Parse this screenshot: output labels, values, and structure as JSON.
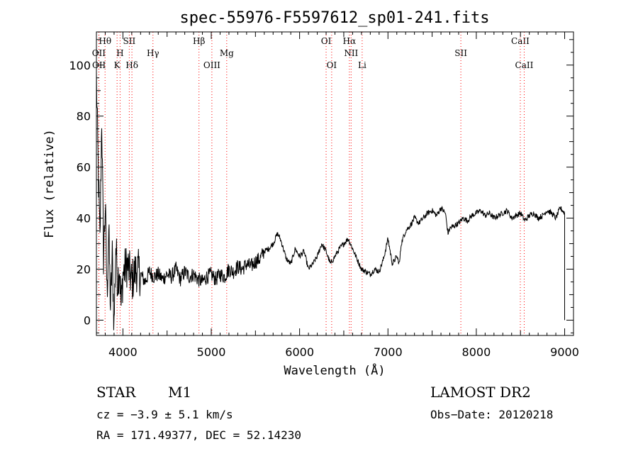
{
  "chart_data": {
    "type": "line",
    "title": "spec-55976-F5597612_sp01-241.fits",
    "xlabel": "Wavelength (Å)",
    "ylabel": "Flux (relative)",
    "xlim": [
      3700,
      9100
    ],
    "ylim": [
      -6,
      113
    ],
    "xticks": [
      4000,
      5000,
      6000,
      7000,
      8000,
      9000
    ],
    "yticks": [
      0,
      20,
      40,
      60,
      80,
      100
    ],
    "grid": false,
    "line_color": "#000000",
    "marker_color": "#ff0000",
    "series": [
      {
        "x": [
          3700,
          3720,
          3740,
          3760,
          3780,
          3800,
          3820,
          3840,
          3860,
          3880,
          3900,
          3920,
          3940,
          3960,
          3980,
          4000,
          4050,
          4100,
          4150,
          4200,
          4250,
          4300,
          4350,
          4400,
          4450,
          4500,
          4550,
          4600,
          4650,
          4700,
          4750,
          4800,
          4850,
          4900,
          4950,
          5000,
          5050,
          5100,
          5150,
          5200,
          5250,
          5300,
          5350,
          5400,
          5450,
          5500,
          5550,
          5600,
          5650,
          5700,
          5750,
          5780,
          5800,
          5850,
          5900,
          5950,
          6000,
          6050,
          6100,
          6150,
          6200,
          6250,
          6300,
          6350,
          6400,
          6450,
          6500,
          6550,
          6600,
          6650,
          6700,
          6750,
          6800,
          6850,
          6900,
          6950,
          7000,
          7050,
          7100,
          7130,
          7150,
          7200,
          7250,
          7300,
          7350,
          7400,
          7450,
          7500,
          7550,
          7600,
          7650,
          7680,
          7700,
          7750,
          7800,
          7850,
          7900,
          7950,
          8000,
          8050,
          8100,
          8150,
          8200,
          8250,
          8300,
          8350,
          8400,
          8450,
          8500,
          8550,
          8600,
          8650,
          8700,
          8750,
          8800,
          8850,
          8900,
          8950,
          9000
        ],
        "y": [
          95,
          60,
          30,
          80,
          25,
          45,
          10,
          35,
          5,
          25,
          -2,
          30,
          15,
          22,
          5,
          18,
          22,
          15,
          20,
          18,
          15,
          19,
          17,
          18,
          16,
          18,
          17,
          20,
          16,
          19,
          17,
          18,
          16,
          15,
          17,
          18,
          16,
          18,
          17,
          20,
          19,
          21,
          20,
          22,
          21,
          23,
          24,
          27,
          28,
          30,
          34,
          32,
          30,
          24,
          22,
          28,
          25,
          27,
          20,
          22,
          25,
          30,
          27,
          22,
          25,
          28,
          30,
          32,
          28,
          24,
          20,
          19,
          18,
          20,
          19,
          24,
          32,
          22,
          25,
          22,
          30,
          35,
          37,
          40,
          38,
          40,
          42,
          43,
          41,
          44,
          42,
          34,
          36,
          37,
          38,
          40,
          39,
          41,
          42,
          43,
          41,
          42,
          40,
          41,
          42,
          43,
          40,
          41,
          42,
          39,
          41,
          42,
          40,
          41,
          43,
          42,
          40,
          44,
          42
        ]
      }
    ],
    "lines": [
      {
        "name": "Hθ",
        "x": 3798,
        "row": 1
      },
      {
        "name": "OII",
        "x": 3727,
        "row": 2
      },
      {
        "name": "OII",
        "x": 3729,
        "row": 3
      },
      {
        "name": "SII",
        "x": 4072,
        "row": 1
      },
      {
        "name": "H",
        "x": 3968,
        "row": 2
      },
      {
        "name": "K",
        "x": 3934,
        "row": 3
      },
      {
        "name": "Hδ",
        "x": 4102,
        "row": 3
      },
      {
        "name": "Hγ",
        "x": 4340,
        "row": 2
      },
      {
        "name": "Hβ",
        "x": 4861,
        "row": 1
      },
      {
        "name": "OIII",
        "x": 5007,
        "row": 3
      },
      {
        "name": "Mg",
        "x": 5175,
        "row": 2
      },
      {
        "name": "OI",
        "x": 6300,
        "row": 1
      },
      {
        "name": "OI",
        "x": 6363,
        "row": 3
      },
      {
        "name": "Hα",
        "x": 6563,
        "row": 1
      },
      {
        "name": "NII",
        "x": 6583,
        "row": 2
      },
      {
        "name": "Li",
        "x": 6708,
        "row": 3
      },
      {
        "name": "SII",
        "x": 7825,
        "row": 2
      },
      {
        "name": "CaII",
        "x": 8498,
        "row": 1
      },
      {
        "name": "CaII",
        "x": 8542,
        "row": 3
      }
    ]
  },
  "info": {
    "class_label": "STAR",
    "subclass_label": "M1",
    "survey": "LAMOST DR2",
    "cz": "cz = −3.9 ± 5.1 km/s",
    "obs_date": "Obs−Date: 20120218",
    "coords": "RA = 171.49377, DEC =  52.14230"
  }
}
